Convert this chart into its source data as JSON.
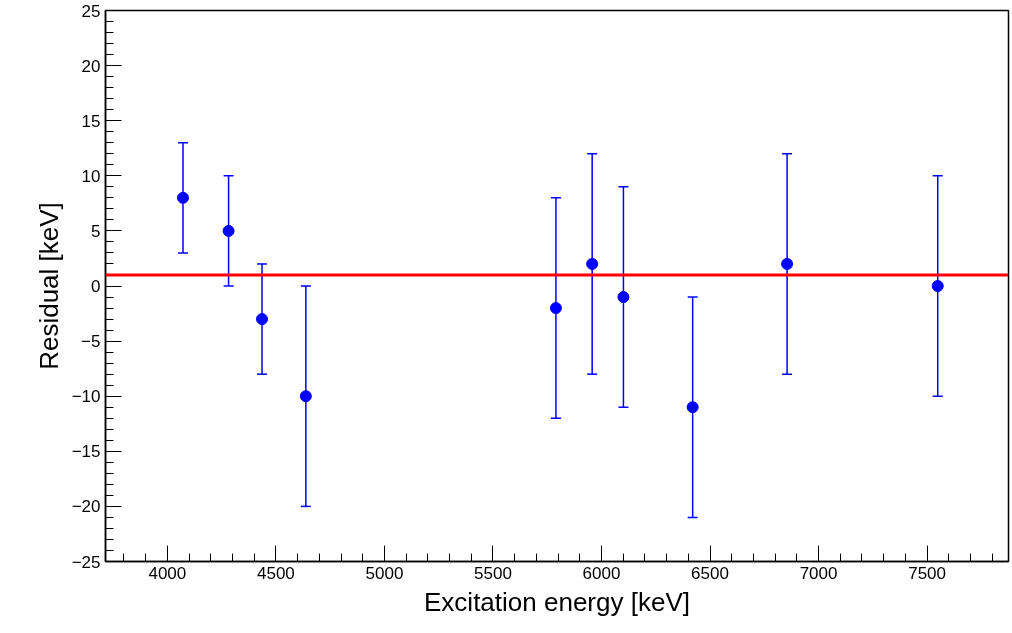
{
  "chart_data": {
    "type": "scatter",
    "xlabel": "Excitation energy [keV]",
    "ylabel": "Residual [keV]",
    "x": [
      4072,
      4282,
      4436,
      4638,
      5790,
      5957,
      6101,
      6420,
      6855,
      7549
    ],
    "series": [
      {
        "color": "#0000ff",
        "values": [
          8,
          5,
          -3,
          -10,
          -2,
          2,
          -1,
          -11,
          2,
          0
        ],
        "errors": [
          5,
          5,
          5,
          10,
          10,
          10,
          10,
          10,
          10,
          10
        ]
      }
    ],
    "xlim": [
      3715,
      7875
    ],
    "xticks": [
      4000,
      4500,
      5000,
      5500,
      6000,
      6500,
      7000,
      7500
    ],
    "ylim": [
      -25,
      25
    ],
    "yticks": [
      {
        "value": -25,
        "label": "−25"
      },
      {
        "value": -20,
        "label": "−20"
      },
      {
        "value": -15,
        "label": "−15"
      },
      {
        "value": -10,
        "label": "−10"
      },
      {
        "value": -5,
        "label": "−5"
      },
      0,
      5,
      10,
      15,
      20,
      25
    ],
    "ref_lines": [
      {
        "axis": "y",
        "value": 1,
        "color": "#ff0000"
      }
    ],
    "marker": "circle",
    "grid": false
  }
}
